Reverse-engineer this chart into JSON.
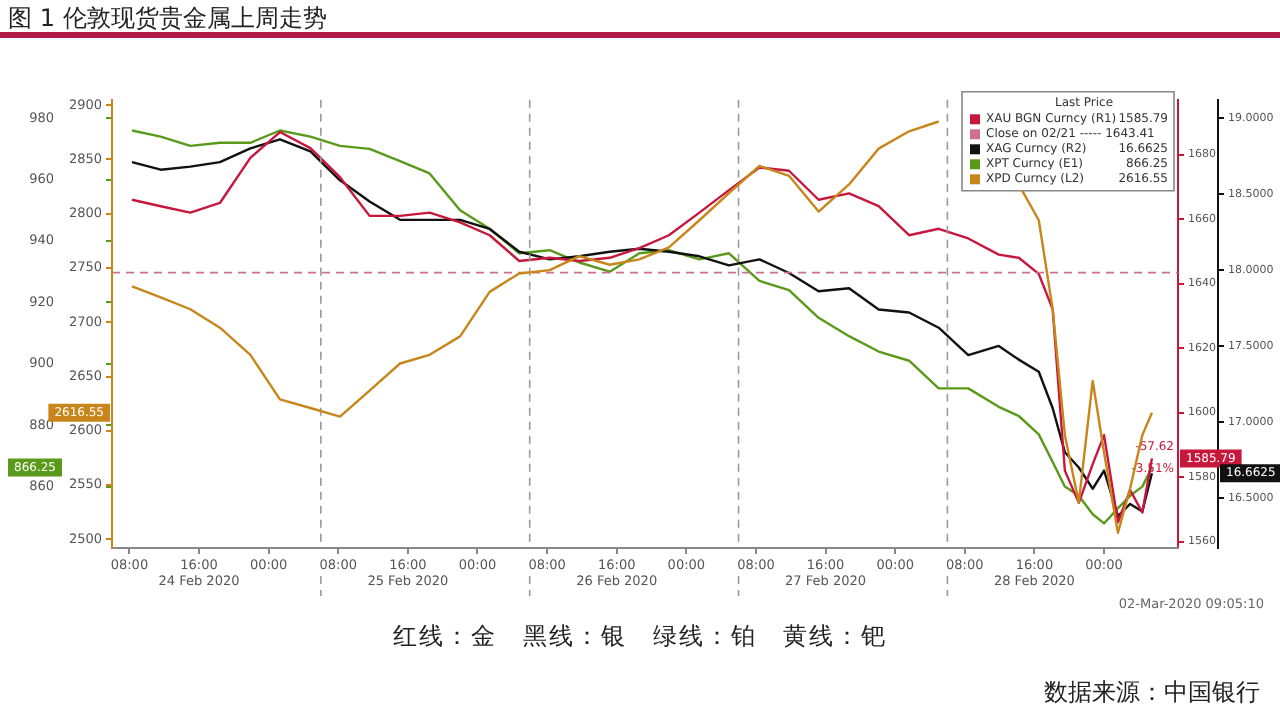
{
  "chart_data": [
    {
      "type": "line",
      "title": "图 1 伦敦现货贵金属上周走势",
      "legend": "top right",
      "legend_title": "Last Price",
      "marker": "none",
      "line_style": "solid",
      "x": [
        "2020-02-24T08:18",
        "2020-02-24T11:36",
        "2020-02-24T15:00",
        "2020-02-24T18:24",
        "2020-02-24T21:54",
        "2020-02-25T01:18",
        "2020-02-25T04:48",
        "2020-02-25T08:12",
        "2020-02-25T11:36",
        "2020-02-25T15:06",
        "2020-02-25T18:30",
        "2020-02-25T22:00",
        "2020-02-26T01:24",
        "2020-02-26T04:48",
        "2020-02-26T08:18",
        "2020-02-26T11:42",
        "2020-02-26T15:12",
        "2020-02-26T18:36",
        "2020-02-26T22:00",
        "2020-02-27T01:30",
        "2020-02-27T04:54",
        "2020-02-27T08:24",
        "2020-02-27T11:48",
        "2020-02-27T15:12",
        "2020-02-27T18:42",
        "2020-02-27T22:06",
        "2020-02-28T01:36",
        "2020-02-28T05:00",
        "2020-02-28T08:24",
        "2020-02-28T11:54",
        "2020-02-28T14:12",
        "2020-02-28T16:30",
        "2020-02-28T18:06",
        "2020-02-28T19:30",
        "2020-02-28T21:06",
        "2020-02-28T22:42",
        "2020-02-29T00:00",
        "2020-02-29T01:36",
        "2020-02-29T03:00",
        "2020-02-29T04:24",
        "2020-02-29T05:30"
      ],
      "xlim": [
        "2020-02-24T06:00",
        "2020-02-29T08:30"
      ],
      "xticks": [
        {
          "value": "2020-02-24T08:00",
          "label": "08:00"
        },
        {
          "value": "2020-02-24T16:00",
          "label": "16:00\n24 Feb 2020"
        },
        {
          "value": "2020-02-25T00:00",
          "label": "00:00"
        },
        {
          "value": "2020-02-25T08:00",
          "label": "08:00"
        },
        {
          "value": "2020-02-25T16:00",
          "label": "16:00\n25 Feb 2020"
        },
        {
          "value": "2020-02-26T00:00",
          "label": "00:00"
        },
        {
          "value": "2020-02-26T08:00",
          "label": "08:00"
        },
        {
          "value": "2020-02-26T16:00",
          "label": "16:00\n26 Feb 2020"
        },
        {
          "value": "2020-02-27T00:00",
          "label": "00:00"
        },
        {
          "value": "2020-02-27T08:00",
          "label": "08:00"
        },
        {
          "value": "2020-02-27T16:00",
          "label": "16:00\n27 Feb 2020"
        },
        {
          "value": "2020-02-28T00:00",
          "label": "00:00"
        },
        {
          "value": "2020-02-28T08:00",
          "label": "08:00"
        },
        {
          "value": "2020-02-28T16:00",
          "label": "16:00\n28 Feb 2020"
        },
        {
          "value": "2020-02-29T00:00",
          "label": "00:00"
        }
      ],
      "ylim": [
        840,
        986
      ],
      "yticks": [
        860,
        880,
        900,
        920,
        940,
        960,
        980
      ],
      "y2lim": [
        1558,
        1697
      ],
      "y2ticks": [
        1560,
        1580,
        1600,
        1620,
        1640,
        1660,
        1680
      ],
      "y3lim": [
        16.17,
        19.12
      ],
      "y3ticks": [
        {
          "value": 16.5,
          "label": "16.5000"
        },
        {
          "value": 17,
          "label": "17.0000"
        },
        {
          "value": 17.5,
          "label": "17.5000"
        },
        {
          "value": 18,
          "label": "18.0000"
        },
        {
          "value": 18.5,
          "label": "18.5000"
        },
        {
          "value": 19,
          "label": "19.0000"
        }
      ],
      "series": [
        {
          "name": "XAU BGN Curncy (R1)",
          "color": "#c8173d",
          "axis": "y2",
          "values": [
            1666,
            1664,
            1662,
            1665,
            1679,
            1687,
            1682,
            1673,
            1661,
            1661,
            1662,
            1659,
            1655,
            1647,
            1648,
            1647,
            1648,
            1651,
            1655,
            1662,
            1669,
            1676,
            1675,
            1666,
            1668,
            1664,
            1655,
            1657,
            1654,
            1649,
            1648,
            1643,
            1632,
            1582,
            1572,
            1584,
            1593,
            1566,
            1576,
            1569,
            1585.79
          ]
        },
        {
          "name": "XAG Curncy (R2)",
          "color": "#111111",
          "axis": "y3",
          "values": [
            18.71,
            18.66,
            18.68,
            18.71,
            18.8,
            18.86,
            18.78,
            18.59,
            18.45,
            18.33,
            18.33,
            18.33,
            18.27,
            18.12,
            18.07,
            18.09,
            18.12,
            18.14,
            18.12,
            18.09,
            18.03,
            18.07,
            17.98,
            17.86,
            17.88,
            17.74,
            17.72,
            17.62,
            17.44,
            17.5,
            17.41,
            17.33,
            17.09,
            16.8,
            16.7,
            16.56,
            16.68,
            16.38,
            16.46,
            16.41,
            16.6625
          ]
        },
        {
          "name": "XPT Curncy (E1)",
          "color": "#5a9a1a",
          "values": [
            976,
            974,
            971,
            972,
            972,
            976,
            974,
            971,
            970,
            966,
            962,
            950,
            944,
            936,
            937,
            933,
            930,
            936,
            937,
            934,
            936,
            927,
            924,
            915,
            909,
            904,
            901,
            892,
            892,
            886,
            883,
            877,
            868,
            860,
            857,
            851,
            848,
            853,
            857,
            860,
            866.25
          ]
        }
      ],
      "ref_lines": [
        {
          "axis": "y2",
          "value": 1643.41,
          "label": "Close on 02/21 ----- 1643.41",
          "color": "#d0708a",
          "line_style": "dashed"
        },
        {
          "axis": "x",
          "value": "2020-02-25T06:00",
          "color": "#999999",
          "line_style": "dashed"
        },
        {
          "axis": "x",
          "value": "2020-02-26T06:00",
          "color": "#999999",
          "line_style": "dashed"
        },
        {
          "axis": "x",
          "value": "2020-02-27T06:00",
          "color": "#999999",
          "line_style": "dashed"
        },
        {
          "axis": "x",
          "value": "2020-02-28T06:00",
          "color": "#999999",
          "line_style": "dashed"
        }
      ],
      "annotations": [
        "-57.62",
        "-3.51%",
        "02-Mar-2020 09:05:10",
        "红线：金　黑线：银　绿线：铂　黄线：钯",
        "数据来源：中国银行",
        "1585.79",
        "16.6625",
        "866.25"
      ]
    },
    {
      "type": "line",
      "legend": "top right",
      "marker": "none",
      "line_style": "solid",
      "tick_labels": "y",
      "x": [
        "2020-02-24T08:18",
        "2020-02-24T11:36",
        "2020-02-24T15:00",
        "2020-02-24T18:24",
        "2020-02-24T21:54",
        "2020-02-25T01:18",
        "2020-02-25T04:48",
        "2020-02-25T08:12",
        "2020-02-25T11:36",
        "2020-02-25T15:06",
        "2020-02-25T18:30",
        "2020-02-25T22:00",
        "2020-02-26T01:24",
        "2020-02-26T04:48",
        "2020-02-26T08:18",
        "2020-02-26T11:42",
        "2020-02-26T15:12",
        "2020-02-26T18:36",
        "2020-02-26T22:00",
        "2020-02-27T01:30",
        "2020-02-27T04:54",
        "2020-02-27T08:24",
        "2020-02-27T11:48",
        "2020-02-27T15:12",
        "2020-02-27T18:42",
        "2020-02-27T22:06",
        "2020-02-28T01:36",
        "2020-02-28T05:00",
        "2020-02-28T08:24",
        "2020-02-28T11:54",
        "2020-02-28T14:12",
        "2020-02-28T16:30",
        "2020-02-28T18:06",
        "2020-02-28T19:30",
        "2020-02-28T21:06",
        "2020-02-28T22:42",
        "2020-02-29T00:00",
        "2020-02-29T01:36",
        "2020-02-29T03:00",
        "2020-02-29T04:24",
        "2020-02-29T05:30"
      ],
      "xlim": [
        "2020-02-24T06:00",
        "2020-02-29T08:30"
      ],
      "ylim": [
        2492,
        2905
      ],
      "yticks": [
        2500,
        2550,
        2600,
        2650,
        2700,
        2750,
        2800,
        2850,
        2900
      ],
      "series": [
        {
          "name": "XPD Curncy (L2)",
          "color": "#c8861a",
          "values": [
            2733,
            2723,
            2712,
            2695,
            2670,
            2629,
            2621,
            2613,
            2637,
            2662,
            2670,
            2687,
            2728,
            2745,
            2748,
            2761,
            2753,
            2758,
            2769,
            2794,
            2819,
            2844,
            2835,
            2802,
            2827,
            2860,
            2876,
            2885,
            null,
            null,
            2827,
            2794,
            2712,
            2596,
            2534,
            2646,
            2580,
            2506,
            2547,
            2596,
            2616.55
          ]
        }
      ],
      "annotations": [
        "2616.55"
      ]
    }
  ]
}
